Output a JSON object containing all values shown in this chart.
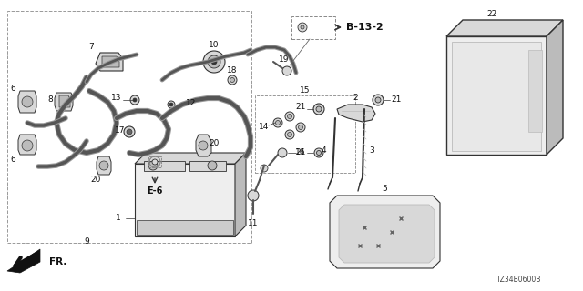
{
  "bg_color": "#ffffff",
  "line_color": "#333333",
  "text_color": "#111111",
  "diagram_id": "TZ34B0600B",
  "ref_label": "B-13-2",
  "ref_label2": "E-6",
  "fr_label": "FR.",
  "fig_width": 6.4,
  "fig_height": 3.2,
  "dpi": 100,
  "gray_fill": "#d8d8d8",
  "light_gray": "#eeeeee",
  "mid_gray": "#bbbbbb",
  "dark_gray": "#666666"
}
